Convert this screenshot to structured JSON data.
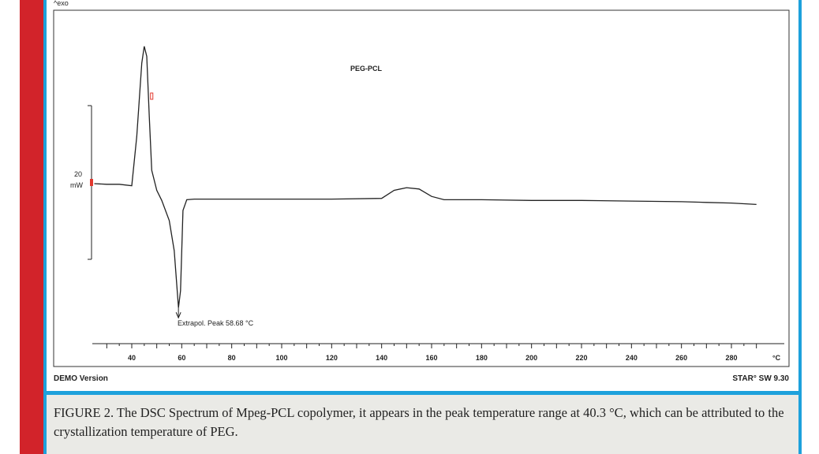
{
  "figure": {
    "exo_label": "^exo",
    "sample_label": "PEG-PCL",
    "scale_label_value": "20",
    "scale_label_unit": "mW",
    "peak_annotation": "Extrapol. Peak   58.68 °C",
    "footer_left": "DEMO Version",
    "footer_right": "STAR° SW 9.30",
    "caption": "FIGURE 2. The DSC Spectrum of Mpeg-PCL copolymer, it appears in the peak temperature range at 40.3 °C, which can be attributed to the crystallization temperature of PEG."
  },
  "colors": {
    "left_bar": "#d2232a",
    "frame_blue": "#1da1dc",
    "caption_bg": "#eaeae6",
    "marker_red": "#e2382e"
  },
  "chart_data": {
    "type": "line",
    "title": "PEG-PCL",
    "xlabel": "°C",
    "ylabel": "",
    "xlim": [
      25,
      290
    ],
    "x_ticks": [
      40,
      60,
      80,
      100,
      120,
      140,
      160,
      180,
      200,
      220,
      240,
      260,
      280
    ],
    "x_tick_labels": [
      "40",
      "60",
      "80",
      "100",
      "120",
      "140",
      "160",
      "180",
      "200",
      "220",
      "240",
      "260",
      "280"
    ],
    "x_unit_label": "°C",
    "ylim": [
      -25,
      26
    ],
    "scale_bar_mW": 20,
    "grid": false,
    "series": [
      {
        "x": [
          25,
          30,
          35,
          40,
          42,
          44,
          45,
          46,
          47,
          48,
          50,
          52,
          55,
          57,
          58.68,
          59.5,
          60.5,
          62,
          65,
          80,
          100,
          120,
          140,
          145,
          150,
          155,
          160,
          165,
          180,
          200,
          220,
          240,
          260,
          270,
          280,
          290
        ],
        "y": [
          0,
          -0.1,
          -0.1,
          -0.3,
          7,
          18,
          20.5,
          19,
          10,
          2,
          -1,
          -2.5,
          -5.5,
          -10,
          -18.5,
          -16,
          -4,
          -2.4,
          -2.3,
          -2.3,
          -2.3,
          -2.3,
          -2.2,
          -1,
          -0.6,
          -0.8,
          -1.9,
          -2.4,
          -2.4,
          -2.5,
          -2.5,
          -2.6,
          -2.7,
          -2.8,
          -2.9,
          -3.1
        ]
      }
    ]
  }
}
